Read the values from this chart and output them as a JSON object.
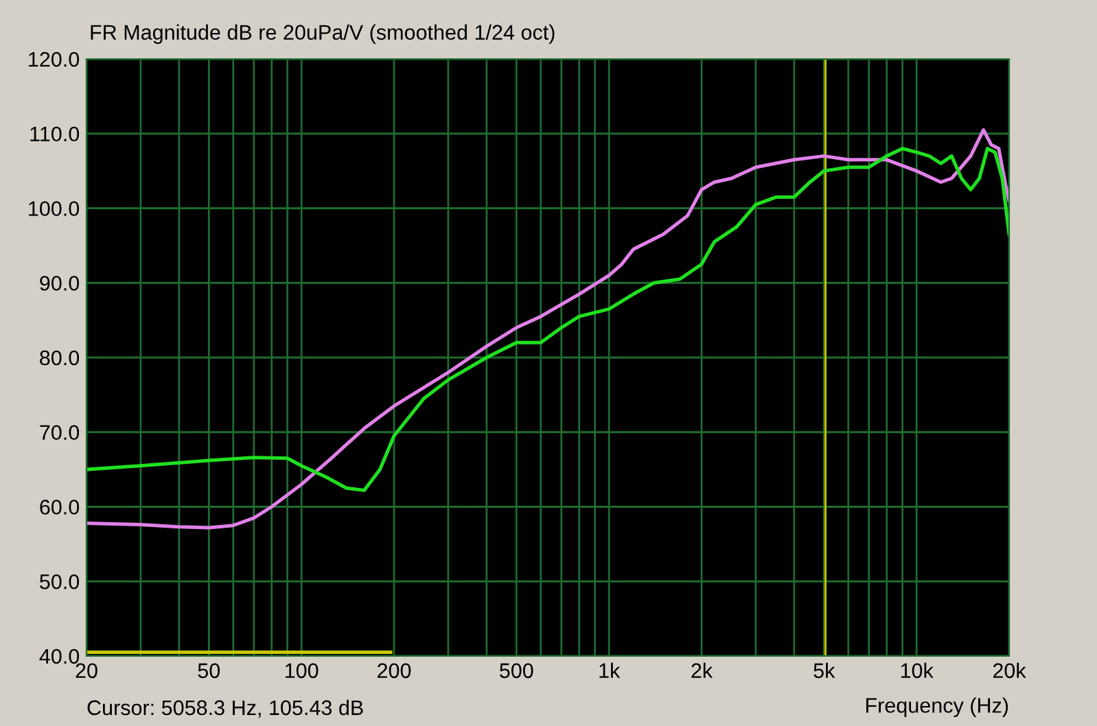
{
  "chart_data": {
    "type": "line",
    "title": "FR Magnitude dB re 20uPa/V (smoothed 1/24 oct)",
    "xlabel": "Frequency (Hz)",
    "log": "x",
    "grid": true,
    "line_style": "solid",
    "marker": "none",
    "xlim": [
      20,
      20000
    ],
    "ylim": [
      40,
      120
    ],
    "xticks": [
      20,
      {
        "value": 30,
        "label": null
      },
      {
        "value": 40,
        "label": null
      },
      50,
      {
        "value": 60,
        "label": null
      },
      {
        "value": 70,
        "label": null
      },
      {
        "value": 80,
        "label": null
      },
      {
        "value": 90,
        "label": null
      },
      100,
      200,
      {
        "value": 300,
        "label": null
      },
      {
        "value": 400,
        "label": null
      },
      500,
      {
        "value": 600,
        "label": null
      },
      {
        "value": 700,
        "label": null
      },
      {
        "value": 800,
        "label": null
      },
      {
        "value": 900,
        "label": null
      },
      {
        "value": 1000,
        "label": "1k"
      },
      {
        "value": 2000,
        "label": "2k"
      },
      {
        "value": 3000,
        "label": null
      },
      {
        "value": 4000,
        "label": null
      },
      {
        "value": 5000,
        "label": "5k"
      },
      {
        "value": 6000,
        "label": null
      },
      {
        "value": 7000,
        "label": null
      },
      {
        "value": 8000,
        "label": null
      },
      {
        "value": 9000,
        "label": null
      },
      {
        "value": 10000,
        "label": "10k"
      },
      {
        "value": 20000,
        "label": "20k"
      }
    ],
    "yticks": [
      {
        "value": 40,
        "label": "40.0"
      },
      {
        "value": 50,
        "label": "50.0"
      },
      {
        "value": 60,
        "label": "60.0"
      },
      {
        "value": 70,
        "label": "70.0"
      },
      {
        "value": 80,
        "label": "80.0"
      },
      {
        "value": 90,
        "label": "90.0"
      },
      {
        "value": 100,
        "label": "100.0"
      },
      {
        "value": 110,
        "label": "110.0"
      },
      {
        "value": 120,
        "label": "120.0"
      }
    ],
    "series": [
      {
        "color": "#e080e8",
        "x": [
          20,
          30,
          40,
          50,
          60,
          70,
          80,
          100,
          125,
          160,
          200,
          300,
          400,
          500,
          600,
          800,
          1000,
          1100,
          1200,
          1500,
          1800,
          2000,
          2200,
          2500,
          3000,
          4000,
          5000,
          6000,
          8000,
          10000,
          12000,
          13000,
          15000,
          16500,
          17500,
          18500,
          19500,
          20000
        ],
        "values": [
          57.8,
          57.6,
          57.3,
          57.2,
          57.5,
          58.5,
          60,
          63,
          66.5,
          70.5,
          73.5,
          78,
          81.5,
          84,
          85.5,
          88.5,
          91,
          92.5,
          94.5,
          96.5,
          99,
          102.5,
          103.5,
          104,
          105.5,
          106.5,
          107,
          106.5,
          106.5,
          105,
          103.5,
          104,
          107,
          110.5,
          108.5,
          108,
          103,
          101
        ]
      },
      {
        "color": "#20e020",
        "x": [
          20,
          30,
          50,
          70,
          90,
          100,
          120,
          140,
          160,
          180,
          200,
          250,
          300,
          400,
          500,
          600,
          700,
          800,
          1000,
          1200,
          1400,
          1700,
          2000,
          2200,
          2600,
          3000,
          3500,
          4000,
          4500,
          5000,
          6000,
          7000,
          8000,
          9000,
          10000,
          11000,
          12000,
          13000,
          14000,
          15000,
          16000,
          17000,
          18000,
          19000,
          20000
        ],
        "values": [
          65,
          65.5,
          66.2,
          66.6,
          66.5,
          65.5,
          64,
          62.5,
          62.2,
          65,
          69.5,
          74.5,
          77,
          80,
          82,
          82,
          84,
          85.5,
          86.5,
          88.5,
          90,
          90.5,
          92.5,
          95.5,
          97.5,
          100.5,
          101.5,
          101.5,
          103.5,
          105,
          105.5,
          105.5,
          107,
          108,
          107.5,
          107,
          106,
          107,
          104,
          102.5,
          104,
          108,
          107.5,
          104,
          96.5
        ]
      },
      {
        "color": "#c8c800",
        "x": [
          20,
          195
        ],
        "values": [
          40.5,
          40.5
        ]
      }
    ],
    "ref_lines": [
      {
        "axis": "x",
        "value": 5058.3,
        "color": "#c8c800"
      }
    ],
    "annotations": [
      "Cursor: 5058.3 Hz, 105.43 dB"
    ]
  }
}
